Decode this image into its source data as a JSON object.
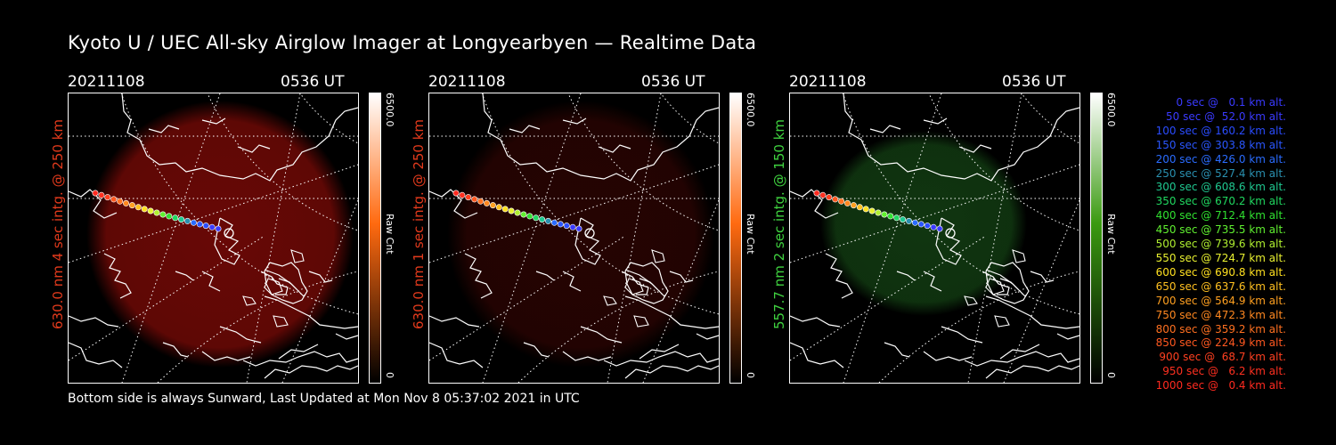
{
  "title": "Kyoto U / UEC All-sky Airglow Imager at Longyearbyen — Realtime Data",
  "footer": "Bottom side is always Sunward, Last Updated at Mon Nov  8 05:37:02 2021 in UTC",
  "colors": {
    "red_label": "#e23a1c",
    "green_label": "#3fd13f",
    "glow_red": "#7a0a06",
    "glow_green": "#113d11"
  },
  "panels": [
    {
      "date": "20211108",
      "time": "0536 UT",
      "side_label": "630.0 nm 4 sec intg. @ 250 km",
      "label_color": "#e23a1c",
      "cbar_max": "6500.0",
      "cbar_unit": "Raw Cnt",
      "cbar_min": "0",
      "cbar_color": "#ff6a10",
      "glow": "#6e0906",
      "glow_opacity": 0.95
    },
    {
      "date": "20211108",
      "time": "0536 UT",
      "side_label": "630.0 nm 1 sec intg. @ 250 km",
      "label_color": "#e23a1c",
      "cbar_max": "6500.0",
      "cbar_unit": "Raw Cnt",
      "cbar_min": "0",
      "cbar_color": "#ff6a10",
      "glow": "#2a0402",
      "glow_opacity": 0.9
    },
    {
      "date": "20211108",
      "time": "0536 UT",
      "side_label": "557.7 nm 2 sec intg. @ 150 km",
      "label_color": "#3fd13f",
      "cbar_max": "6500.0",
      "cbar_unit": "Raw Cnt",
      "cbar_min": "0",
      "cbar_color": "#3a9a10",
      "glow": "#123c12",
      "glow_opacity": 0.9
    }
  ],
  "legend": [
    {
      "text": "0 sec @   0.1 km alt.",
      "color": "#3a3aff"
    },
    {
      "text": "50 sec @  52.0 km alt.",
      "color": "#3a3aff"
    },
    {
      "text": "100 sec @ 160.2 km alt.",
      "color": "#2a4cff"
    },
    {
      "text": "150 sec @ 303.8 km alt.",
      "color": "#2a56ff"
    },
    {
      "text": "200 sec @ 426.0 km alt.",
      "color": "#2a6cff"
    },
    {
      "text": "250 sec @ 527.4 km alt.",
      "color": "#2a90b0"
    },
    {
      "text": "300 sec @ 608.6 km alt.",
      "color": "#1fc890"
    },
    {
      "text": "350 sec @ 670.2 km alt.",
      "color": "#20d860"
    },
    {
      "text": "400 sec @ 712.4 km alt.",
      "color": "#30e030"
    },
    {
      "text": "450 sec @ 735.5 km alt.",
      "color": "#60f030"
    },
    {
      "text": "500 sec @ 739.6 km alt.",
      "color": "#b0f030"
    },
    {
      "text": "550 sec @ 724.7 km alt.",
      "color": "#e8f030"
    },
    {
      "text": "600 sec @ 690.8 km alt.",
      "color": "#ffe020"
    },
    {
      "text": "650 sec @ 637.6 km alt.",
      "color": "#ffc020"
    },
    {
      "text": "700 sec @ 564.9 km alt.",
      "color": "#ffa020"
    },
    {
      "text": "750 sec @ 472.3 km alt.",
      "color": "#ff8820"
    },
    {
      "text": "800 sec @ 359.2 km alt.",
      "color": "#ff7020"
    },
    {
      "text": "850 sec @ 224.9 km alt.",
      "color": "#ff5820"
    },
    {
      "text": "900 sec @  68.7 km alt.",
      "color": "#ff4020"
    },
    {
      "text": "950 sec @   6.2 km alt.",
      "color": "#ff3020"
    },
    {
      "text": "1000 sec @   0.4 km alt.",
      "color": "#ff2a20"
    }
  ]
}
